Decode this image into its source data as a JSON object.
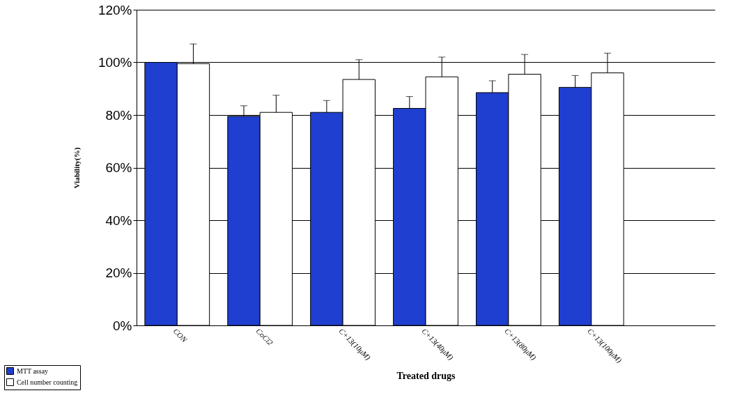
{
  "chart_data": {
    "type": "bar",
    "xlabel": "Treated drugs",
    "ylabel": "Viability(%)",
    "categories": [
      "CON",
      "CoCl2",
      "C+13(10μM)",
      "C+13(40μM)",
      "C+13(80μM)",
      "C+13(100μM)",
      null
    ],
    "series": [
      {
        "name": "MTT assay",
        "color": "#1f3fd0",
        "values": [
          100,
          79.5,
          81,
          82.5,
          88.5,
          90.5,
          null
        ],
        "errors": [
          null,
          4,
          4.5,
          4.5,
          4.5,
          4.5,
          null
        ]
      },
      {
        "name": "Cell number counting",
        "color": "#ffffff",
        "values": [
          99.5,
          81,
          93.5,
          94.5,
          95.5,
          96,
          null
        ],
        "errors": [
          7.5,
          6.5,
          7.5,
          7.5,
          7.5,
          7.5,
          null
        ]
      }
    ],
    "ylim": [
      0,
      120
    ],
    "yticks": [
      {
        "value": 0,
        "label": "0%"
      },
      {
        "value": 20,
        "label": "20%"
      },
      {
        "value": 40,
        "label": "40%"
      },
      {
        "value": 60,
        "label": "60%"
      },
      {
        "value": 80,
        "label": "80%"
      },
      {
        "value": 100,
        "label": "100%"
      },
      {
        "value": 120,
        "label": "120%"
      }
    ],
    "grid": "y",
    "legend": "bottom left"
  }
}
